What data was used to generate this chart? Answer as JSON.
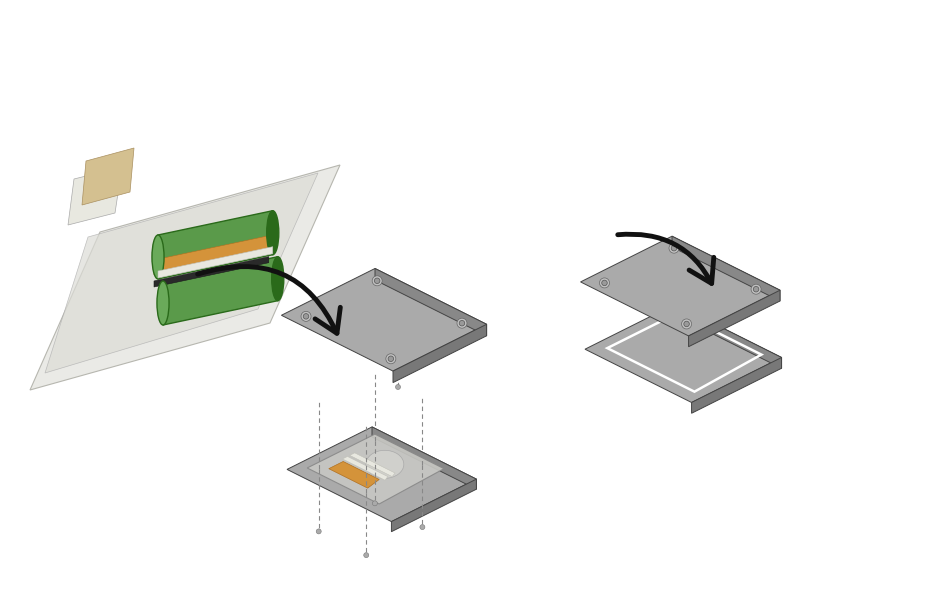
{
  "background_color": "#ffffff",
  "figure_size": [
    9.37,
    5.95
  ],
  "dpi": 100,
  "gray_top": "#aaaaaa",
  "gray_front": "#888888",
  "gray_side": "#787878",
  "orange_top": "#d4933a",
  "orange_front": "#c07830",
  "orange_side": "#b86820",
  "bolt_ring": "#c0c0c0",
  "bolt_inner": "#9a9a9a",
  "green_body": "#5a9a4a",
  "green_dark": "#2a6a1a",
  "green_light": "#6aaa5a",
  "arrow_color": "#111111",
  "dash_color": "#888888",
  "pouch_color": "#e8e8e4",
  "pouch2_color": "#dcdcd6",
  "tab_white": "#e8e8e0",
  "tab_cream": "#d4c090",
  "strip_black": "#2a2a2a",
  "strip_orange": "#d4933a",
  "strip_white": "#e8e8e0",
  "plate_pouch": "#c8c8c4",
  "pin_color": "#aaaaaa"
}
